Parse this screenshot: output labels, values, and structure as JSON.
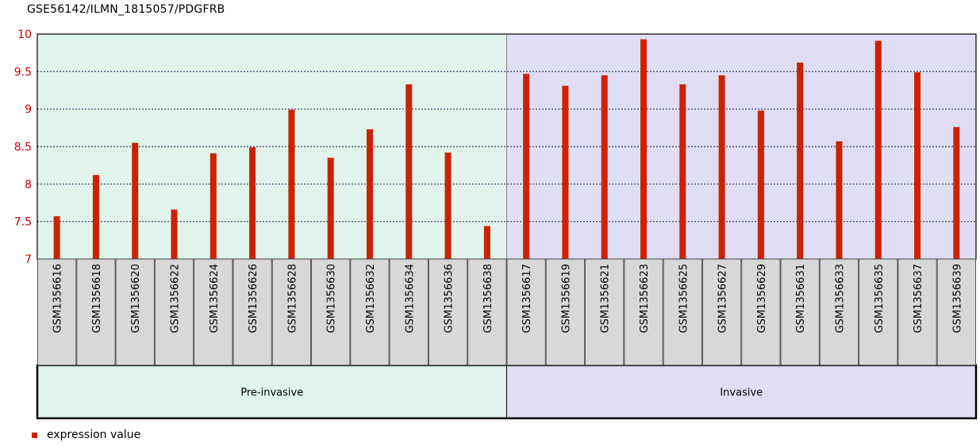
{
  "chart_data": {
    "type": "bar",
    "title": "GSE56142/ILMN_1815057/PDGFRB",
    "ylim": [
      7,
      10
    ],
    "yticks": [
      7,
      7.5,
      8,
      8.5,
      9,
      9.5,
      10
    ],
    "ytick_labels": [
      "7",
      "7.5",
      "8",
      "8.5",
      "9",
      "9.5",
      "10"
    ],
    "grid": true,
    "categories": [
      "GSM1356616",
      "GSM1356618",
      "GSM1356620",
      "GSM1356622",
      "GSM1356624",
      "GSM1356626",
      "GSM1356628",
      "GSM1356630",
      "GSM1356632",
      "GSM1356634",
      "GSM1356636",
      "GSM1356638",
      "GSM1356617",
      "GSM1356619",
      "GSM1356621",
      "GSM1356623",
      "GSM1356625",
      "GSM1356627",
      "GSM1356629",
      "GSM1356631",
      "GSM1356633",
      "GSM1356635",
      "GSM1356637",
      "GSM1356639"
    ],
    "series": [
      {
        "name": "expression value",
        "color": "#cc2200",
        "values": [
          7.57,
          8.12,
          8.55,
          7.66,
          8.41,
          8.49,
          8.99,
          8.35,
          8.73,
          9.33,
          8.42,
          7.44,
          9.47,
          9.31,
          9.45,
          9.93,
          9.33,
          9.45,
          8.98,
          9.62,
          8.57,
          9.91,
          9.49,
          8.76
        ]
      }
    ],
    "groups": [
      {
        "label": "Pre-invasive",
        "count": 12,
        "color": "#e0f4ec"
      },
      {
        "label": "Invasive",
        "count": 12,
        "color": "#e0def4"
      }
    ],
    "legend_position": "bottom-left"
  },
  "colors": {
    "ytick_label": "#cc0000",
    "sample_box": "#d8d8d8",
    "grid": "#333366"
  }
}
